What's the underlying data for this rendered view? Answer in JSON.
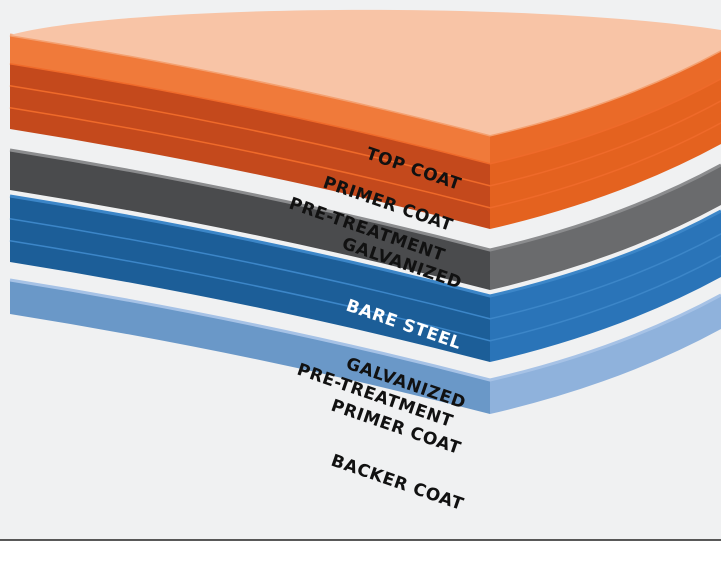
{
  "diagram": {
    "layers": [
      {
        "id": "top-coat",
        "label": "TOP COAT",
        "text_tone": "dark",
        "colors": {
          "side": "#f07a3a",
          "edge": "#f4a070",
          "right": "#ea6a28",
          "top": "#f8c4a6"
        }
      },
      {
        "id": "primer-coat-top",
        "label": "PRIMER COAT",
        "text_tone": "dark",
        "colors": {
          "side": "#c4491c",
          "edge": "#ef6a2a",
          "right": "#e4621f"
        }
      },
      {
        "id": "pre-treatment-top",
        "label": "PRE-TREATMENT",
        "text_tone": "dark",
        "colors": {
          "side": "#c4491c",
          "edge": "#ef6a2a",
          "right": "#e4621f"
        }
      },
      {
        "id": "galvanized-top",
        "label": "GALVANIZED",
        "text_tone": "dark",
        "colors": {
          "side": "#c4491c",
          "edge": "#ef6a2a",
          "right": "#e4621f"
        }
      },
      {
        "id": "bare-steel",
        "label": "BARE STEEL",
        "text_tone": "light",
        "colors": {
          "side": "#4a4b4d",
          "edge": "#8b8c8e",
          "right": "#6a6b6d"
        }
      },
      {
        "id": "galvanized-bottom",
        "label": "GALVANIZED",
        "text_tone": "dark",
        "colors": {
          "side": "#1c5e98",
          "edge": "#3c86c8",
          "right": "#2a74b8"
        }
      },
      {
        "id": "pre-treatment-bottom",
        "label": "PRE-TREATMENT",
        "text_tone": "dark",
        "colors": {
          "side": "#1c5e98",
          "edge": "#3c86c8",
          "right": "#2a74b8"
        }
      },
      {
        "id": "primer-coat-bottom",
        "label": "PRIMER COAT",
        "text_tone": "dark",
        "colors": {
          "side": "#1c5e98",
          "edge": "#3c86c8",
          "right": "#2a74b8"
        }
      },
      {
        "id": "backer-coat",
        "label": "BACKER COAT",
        "text_tone": "dark",
        "colors": {
          "side": "#6a98c8",
          "edge": "#a6c2e6",
          "right": "#8fb2dc"
        }
      }
    ],
    "background": {
      "card": "#f0f1f2",
      "divider": "#222222"
    }
  }
}
